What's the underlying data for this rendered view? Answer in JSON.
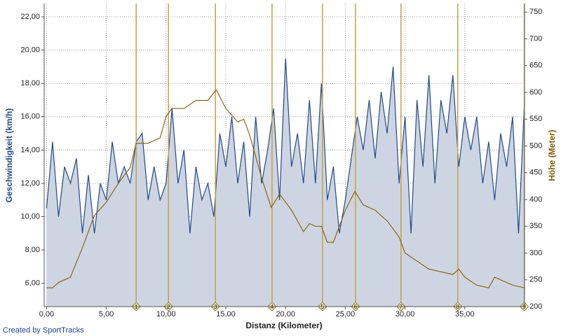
{
  "chart_data": {
    "type": "line",
    "xlabel": "Distanz (Kilometer)",
    "ylabel": "Geschwindigkeit (km/h)",
    "y2label": "Höhe (Meter)",
    "footer": "Created by SportTracks",
    "xlim": [
      -0.2,
      40
    ],
    "ylim": [
      4.6,
      22.8
    ],
    "y2lim": [
      200,
      766
    ],
    "grid": true,
    "xticks": [
      {
        "value": 0,
        "label": "0,00"
      },
      {
        "value": 5,
        "label": "5,00"
      },
      {
        "value": 10,
        "label": "10,00"
      },
      {
        "value": 15,
        "label": "15,00"
      },
      {
        "value": 20,
        "label": "20,00"
      },
      {
        "value": 25,
        "label": "25,00"
      },
      {
        "value": 30,
        "label": "30,00"
      },
      {
        "value": 35,
        "label": "35,00"
      }
    ],
    "yticks": [
      {
        "value": 6,
        "label": "6,00"
      },
      {
        "value": 8,
        "label": "8,00"
      },
      {
        "value": 10,
        "label": "10,00"
      },
      {
        "value": 12,
        "label": "12,00"
      },
      {
        "value": 14,
        "label": "14,00"
      },
      {
        "value": 16,
        "label": "16,00"
      },
      {
        "value": 18,
        "label": "18,00"
      },
      {
        "value": 20,
        "label": "20,00"
      },
      {
        "value": 22,
        "label": "22,00"
      }
    ],
    "y2ticks": [
      200,
      250,
      300,
      350,
      400,
      450,
      500,
      550,
      600,
      650,
      700,
      750
    ],
    "series": [
      {
        "color": "#1f4a8c",
        "fill": "#cdd5e2",
        "x": [
          0,
          0.5,
          1,
          1.5,
          2,
          2.5,
          3,
          3.5,
          4,
          4.5,
          5,
          5.5,
          6,
          6.5,
          7,
          7.5,
          8,
          8.5,
          9,
          9.5,
          10,
          10.5,
          11,
          11.5,
          12,
          12.5,
          13,
          13.5,
          14,
          14.5,
          15,
          15.5,
          16,
          16.5,
          17,
          17.5,
          18,
          18.5,
          19,
          19.5,
          20,
          20.5,
          21,
          21.5,
          22,
          22.5,
          23,
          23.5,
          24,
          24.5,
          25,
          25.5,
          26,
          26.5,
          27,
          27.5,
          28,
          28.5,
          29,
          29.5,
          30,
          30.5,
          31,
          31.5,
          32,
          32.5,
          33,
          33.5,
          34,
          34.5,
          35,
          35.5,
          36,
          36.5,
          37,
          37.5,
          38,
          38.5,
          39,
          39.5,
          40
        ],
        "values": [
          10.5,
          14.5,
          10,
          13,
          12,
          13.5,
          9,
          12.5,
          9,
          12,
          11,
          14.5,
          12,
          13,
          12,
          14.5,
          15,
          11,
          13,
          11,
          12,
          16.5,
          12,
          14,
          9,
          13,
          11,
          12,
          10,
          15,
          13,
          16,
          12,
          14.5,
          10,
          16,
          12,
          14,
          16.5,
          11,
          19.5,
          13,
          15,
          12,
          17,
          12,
          18,
          11,
          13,
          9,
          11,
          13.5,
          16,
          14,
          17,
          13.5,
          17.5,
          15,
          19,
          12,
          16,
          9,
          17,
          13,
          18.5,
          12,
          17,
          15,
          18.5,
          13,
          16,
          14,
          16,
          12,
          14.5,
          11,
          15,
          13,
          16,
          9,
          17
        ]
      },
      {
        "color": "#8b5a00",
        "axis": "y2",
        "x": [
          0,
          0.5,
          1,
          2,
          3,
          4,
          5,
          6,
          7,
          7.5,
          8.5,
          9.5,
          10,
          10.5,
          11.5,
          12.5,
          13.5,
          14.2,
          15,
          16,
          16.5,
          17,
          18,
          18.8,
          19.5,
          20.5,
          21.5,
          22,
          22.5,
          23,
          23.5,
          24,
          25,
          25.8,
          26.5,
          27.5,
          28.5,
          29.5,
          30,
          31,
          32,
          33,
          34,
          34.5,
          35,
          36,
          37,
          37.5,
          38,
          39,
          40
        ],
        "values": [
          235,
          235,
          245,
          255,
          310,
          370,
          395,
          430,
          460,
          505,
          505,
          515,
          555,
          570,
          570,
          585,
          585,
          605,
          570,
          545,
          550,
          520,
          440,
          385,
          410,
          380,
          340,
          355,
          350,
          350,
          320,
          320,
          380,
          415,
          390,
          380,
          360,
          330,
          300,
          285,
          270,
          265,
          260,
          270,
          255,
          240,
          235,
          255,
          250,
          240,
          235
        ]
      }
    ],
    "laps": [
      {
        "x": 7.5,
        "label": 1
      },
      {
        "x": 10.2,
        "label": 2
      },
      {
        "x": 14.13,
        "label": 3
      },
      {
        "x": 18.87,
        "label": 4
      },
      {
        "x": 23.09,
        "label": 5
      },
      {
        "x": 25.85,
        "label": 6
      },
      {
        "x": 29.66,
        "label": 7
      },
      {
        "x": 34.41,
        "label": 8
      },
      {
        "x": 39.98,
        "label": 9
      }
    ],
    "lap_color": "#c8a040"
  }
}
